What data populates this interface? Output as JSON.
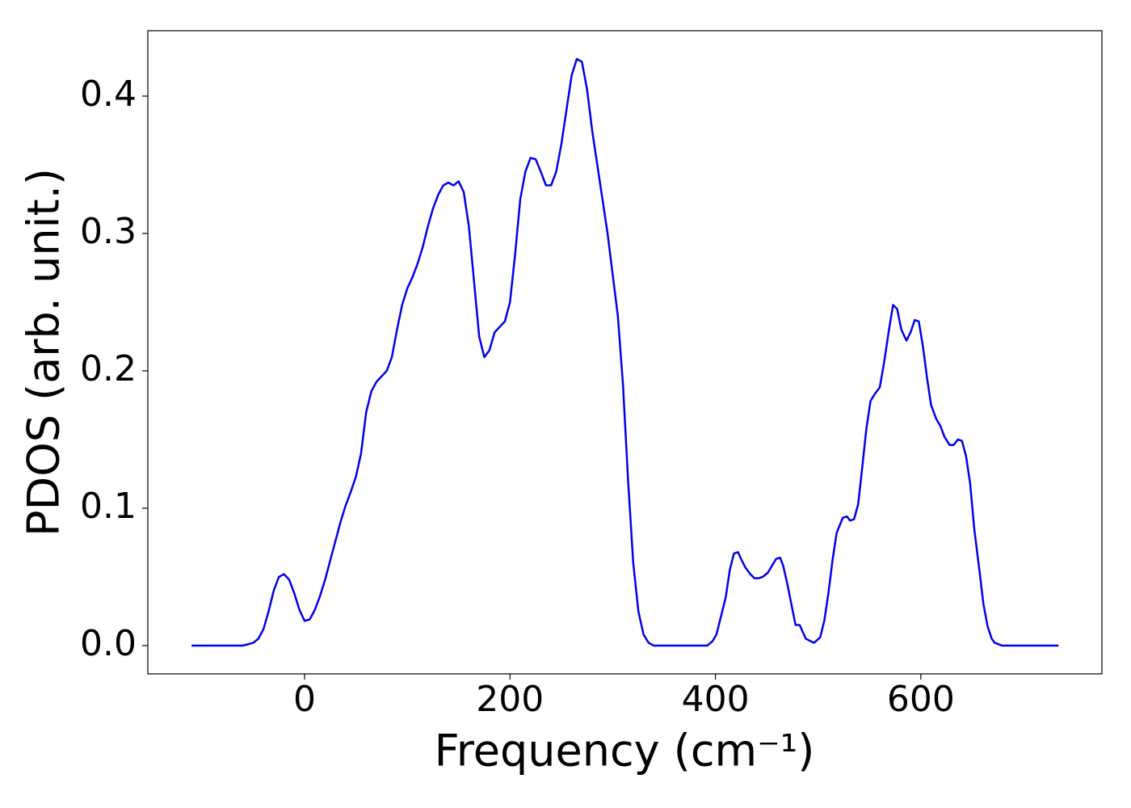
{
  "chart_data": {
    "type": "line",
    "xlabel": "Frequency (cm⁻¹)",
    "ylabel": "PDOS (arb. unit.)",
    "xlim": [
      -152.6,
      776.3
    ],
    "ylim": [
      -0.0206,
      0.4476
    ],
    "xticks": [
      0,
      200,
      400,
      600
    ],
    "yticks": [
      {
        "value": 0,
        "label": "0.0"
      },
      0.1,
      0.2,
      0.3,
      0.4
    ],
    "grid": false,
    "x": [
      -110,
      -60,
      -50,
      -45,
      -40,
      -35,
      -30,
      -25,
      -20,
      -15,
      -10,
      -5,
      0,
      5,
      10,
      15,
      20,
      25,
      30,
      35,
      40,
      45,
      50,
      55,
      60,
      65,
      70,
      75,
      80,
      85,
      90,
      95,
      100,
      105,
      110,
      115,
      120,
      125,
      130,
      135,
      140,
      145,
      150,
      155,
      160,
      165,
      170,
      175,
      180,
      185,
      190,
      195,
      200,
      205,
      210,
      215,
      220,
      225,
      230,
      235,
      240,
      245,
      250,
      255,
      260,
      265,
      270,
      275,
      280,
      285,
      290,
      295,
      300,
      305,
      310,
      315,
      320,
      325,
      330,
      335,
      340,
      392,
      397,
      401,
      405,
      410,
      414,
      418,
      422,
      425,
      429,
      434,
      438,
      442,
      446,
      451,
      455,
      459,
      463,
      466,
      470,
      474,
      478,
      482,
      488,
      496,
      502,
      506,
      510,
      514,
      518,
      524,
      528,
      531,
      535,
      539,
      543,
      547,
      551,
      555,
      560,
      564,
      569,
      573,
      577,
      581,
      586,
      590,
      594,
      598,
      602,
      606,
      610,
      615,
      619,
      623,
      628,
      632,
      636,
      640,
      644,
      648,
      652,
      657,
      661,
      665,
      669,
      672,
      679,
      734
    ],
    "series": [
      {
        "name": "PDOS",
        "color": "#0000ee",
        "values": [
          0,
          0,
          0.002,
          0.005,
          0.012,
          0.025,
          0.04,
          0.05,
          0.052,
          0.048,
          0.038,
          0.026,
          0.018,
          0.019,
          0.026,
          0.036,
          0.048,
          0.062,
          0.076,
          0.09,
          0.102,
          0.112,
          0.123,
          0.14,
          0.17,
          0.185,
          0.192,
          0.196,
          0.2,
          0.21,
          0.23,
          0.248,
          0.26,
          0.268,
          0.278,
          0.29,
          0.305,
          0.318,
          0.328,
          0.335,
          0.337,
          0.335,
          0.338,
          0.33,
          0.305,
          0.265,
          0.225,
          0.21,
          0.215,
          0.228,
          0.232,
          0.236,
          0.25,
          0.285,
          0.325,
          0.345,
          0.355,
          0.354,
          0.345,
          0.335,
          0.335,
          0.345,
          0.365,
          0.39,
          0.415,
          0.427,
          0.425,
          0.405,
          0.375,
          0.35,
          0.325,
          0.3,
          0.27,
          0.24,
          0.19,
          0.12,
          0.06,
          0.025,
          0.008,
          0.002,
          0,
          0,
          0.003,
          0.008,
          0.02,
          0.035,
          0.055,
          0.067,
          0.068,
          0.063,
          0.057,
          0.052,
          0.049,
          0.049,
          0.05,
          0.053,
          0.058,
          0.063,
          0.064,
          0.058,
          0.045,
          0.03,
          0.015,
          0.015,
          0.005,
          0.002,
          0.006,
          0.018,
          0.038,
          0.062,
          0.082,
          0.093,
          0.094,
          0.091,
          0.092,
          0.103,
          0.13,
          0.158,
          0.178,
          0.183,
          0.188,
          0.205,
          0.23,
          0.248,
          0.245,
          0.23,
          0.222,
          0.228,
          0.237,
          0.236,
          0.218,
          0.195,
          0.175,
          0.165,
          0.16,
          0.152,
          0.146,
          0.146,
          0.15,
          0.149,
          0.138,
          0.118,
          0.085,
          0.055,
          0.03,
          0.014,
          0.005,
          0.002,
          0,
          0
        ]
      }
    ]
  }
}
